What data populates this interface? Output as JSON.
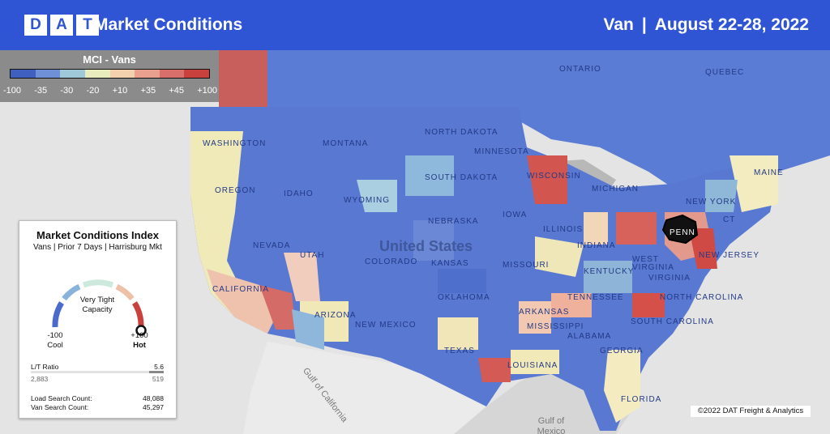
{
  "header": {
    "logo_letters": [
      "D",
      "A",
      "T"
    ],
    "title": "Market Conditions",
    "equipment": "Van",
    "separator": "|",
    "date_range": "August 22-28, 2022",
    "color": "#2f55d4"
  },
  "legend": {
    "title": "MCI - Vans",
    "ticks": [
      "-100",
      "-35",
      "-30",
      "-20",
      "+10",
      "+35",
      "+45",
      "+100"
    ],
    "colors": [
      "#4060c0",
      "#6f8fd6",
      "#9fc8d8",
      "#e9edbe",
      "#f3d0ae",
      "#e9a08f",
      "#d86f6a",
      "#c8413d"
    ]
  },
  "panel": {
    "title": "Market Conditions Index",
    "subtitle": "Vans | Prior 7 Days | Harrisburg Mkt",
    "status_line1": "Very Tight",
    "status_line2": "Capacity",
    "min_value": "-100",
    "min_label": "Cool",
    "max_value": "+100",
    "max_label": "Hot",
    "lt_ratio_label": "L/T Ratio",
    "lt_ratio_value": "5.6",
    "loads": "2,883",
    "trucks": "519",
    "load_search_label": "Load Search Count:",
    "load_search_value": "48,088",
    "van_search_label": "Van Search Count:",
    "van_search_value": "45,297"
  },
  "map": {
    "country_label": "United States",
    "region_labels": [
      "Ontario",
      "Quebec",
      "Washington",
      "Oregon",
      "Idaho",
      "Montana",
      "Wyoming",
      "North Dakota",
      "South Dakota",
      "Minnesota",
      "Wisconsin",
      "Michigan",
      "Nebraska",
      "Iowa",
      "Illinois",
      "Indiana",
      "Nevada",
      "Utah",
      "Colorado",
      "Kansas",
      "Missouri",
      "California",
      "Arizona",
      "New Mexico",
      "Oklahoma",
      "Arkansas",
      "Tennessee",
      "Kentucky",
      "Virginia",
      "West Virginia",
      "North Carolina",
      "South Carolina",
      "Georgia",
      "Alabama",
      "Mississippi",
      "Louisiana",
      "Texas",
      "Florida",
      "New York",
      "Maine",
      "New Jersey",
      "Penn",
      "CT"
    ],
    "water_labels": [
      "Gulf of California",
      "Gulf of Mexico"
    ],
    "selected_market": "Harrisburg"
  },
  "copyright": "©2022 DAT Freight & Analytics"
}
